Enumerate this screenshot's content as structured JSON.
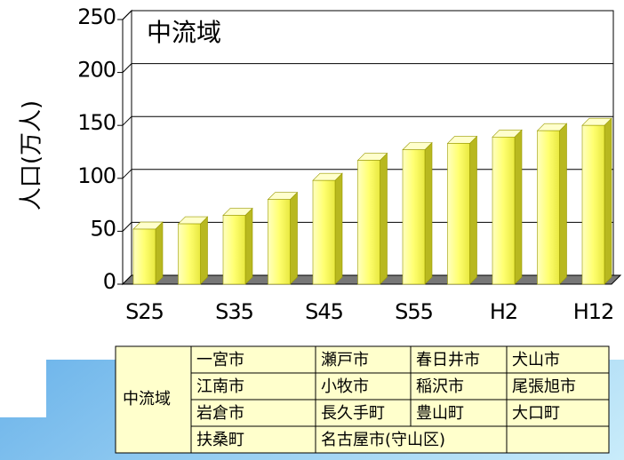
{
  "chart_data": {
    "type": "bar",
    "title": "中流域",
    "y_label": "人口(万人)",
    "categories": [
      "S25",
      null,
      "S35",
      null,
      "S45",
      null,
      "S55",
      null,
      "H2",
      null,
      "H12"
    ],
    "values": [
      52,
      57,
      65,
      80,
      98,
      117,
      127,
      133,
      139,
      145,
      150
    ],
    "color": "#ffff66",
    "ylim": [
      0,
      250
    ],
    "yticks": [
      0,
      50,
      100,
      150,
      200,
      250
    ],
    "grid": true
  },
  "table": {
    "region": "中流域",
    "rows": [
      [
        "一宮市",
        "瀬戸市",
        "春日井市",
        "犬山市"
      ],
      [
        "江南市",
        "小牧市",
        "稲沢市",
        "尾張旭市"
      ],
      [
        "岩倉市",
        "長久手町",
        "豊山町",
        "大口町"
      ],
      [
        "扶桑町",
        "名古屋市(守山区)"
      ]
    ]
  }
}
